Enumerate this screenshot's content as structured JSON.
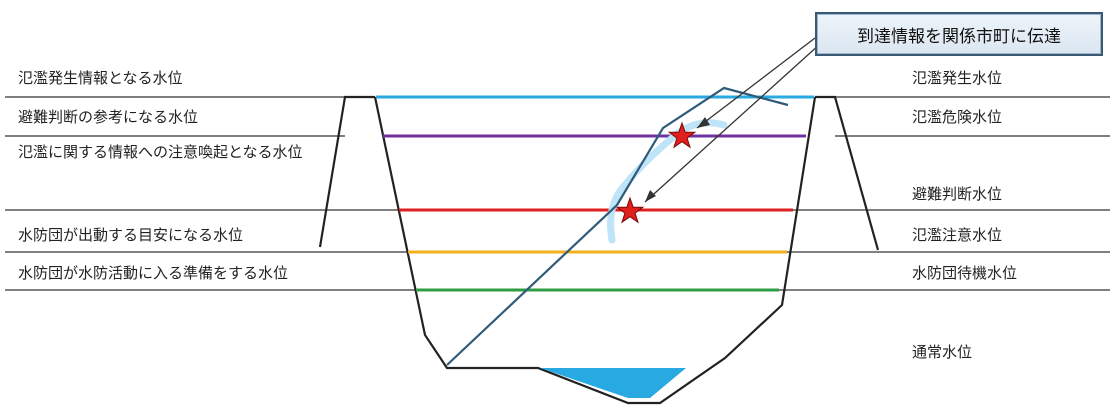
{
  "colors": {
    "flood_occurrence": "#29a9e1",
    "flood_danger": "#7030a0",
    "flood_warning": "#e02020",
    "standby": "#f2b01e",
    "normal_alert": "#2e9e44",
    "water": "#29a9e1",
    "hydrograph": "#2f5b7a",
    "star": "#e0201c"
  },
  "callout": {
    "text": "到達情報を関係市町に伝達"
  },
  "left_labels": [
    "氾濫発生情報となる水位",
    "避難判断の参考になる水位",
    "氾濫に関する情報への注意喚起となる水位",
    "水防団が出動する目安になる水位",
    "水防団が水防活動に入る準備をする水位"
  ],
  "right_labels": [
    "氾濫発生水位",
    "氾濫危険水位",
    "避難判断水位",
    "氾濫注意水位",
    "水防団待機水位",
    "通常水位"
  ]
}
